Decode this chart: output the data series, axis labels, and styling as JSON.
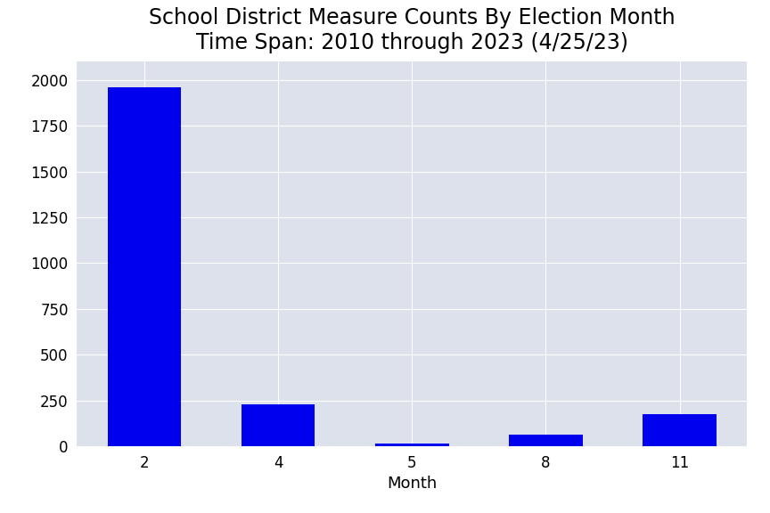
{
  "categories": [
    "2",
    "4",
    "5",
    "8",
    "11"
  ],
  "values": [
    1960,
    230,
    15,
    65,
    175
  ],
  "bar_color": "#0000ee",
  "title_line1": "School District Measure Counts By Election Month",
  "title_line2": "Time Span: 2010 through 2023 (4/25/23)",
  "xlabel": "Month",
  "ylabel": "",
  "ylim": [
    0,
    2100
  ],
  "yticks": [
    0,
    250,
    500,
    750,
    1000,
    1250,
    1500,
    1750,
    2000
  ],
  "title_fontsize": 17,
  "axis_label_fontsize": 13,
  "tick_fontsize": 12,
  "plot_background_color": "#dde1ec",
  "figure_background": "#ffffff",
  "bar_width": 0.55,
  "grid_color": "#ffffff"
}
